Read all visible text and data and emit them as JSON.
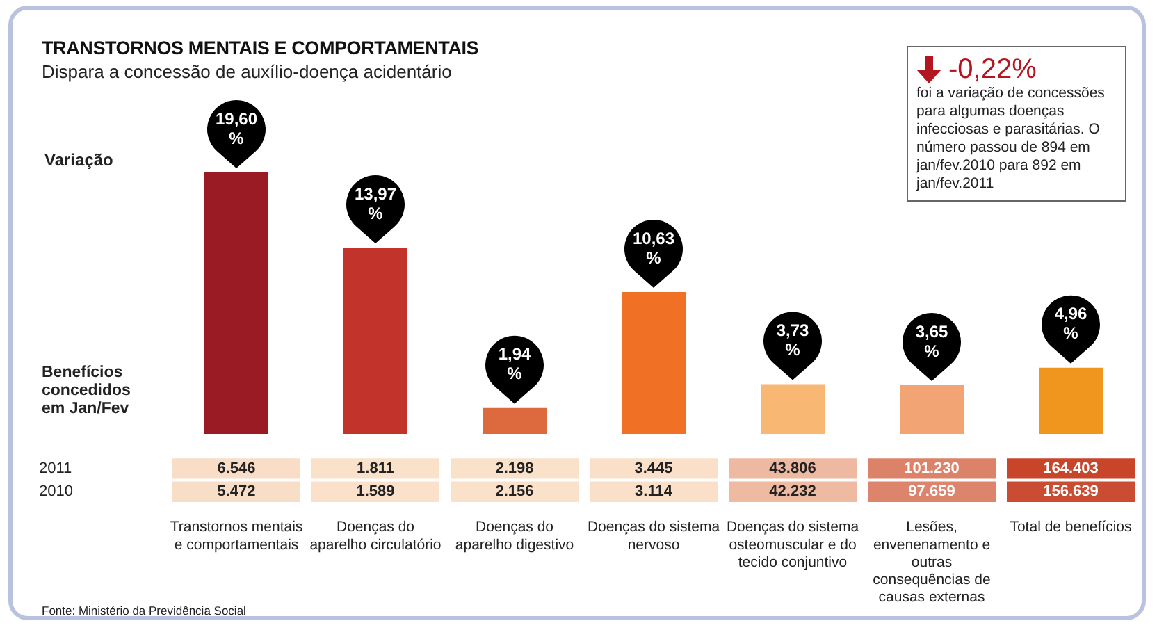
{
  "chart_data": [
    {
      "type": "bar",
      "title": "TRANSTORNOS MENTAIS E COMPORTAMENTAIS",
      "subtitle": "Dispara a concessão de auxílio-doença acidentário",
      "ylabel": "Variação",
      "categories": [
        null,
        null,
        null,
        null,
        null,
        null,
        null
      ],
      "values": [
        19.6,
        13.97,
        1.94,
        10.63,
        3.73,
        3.65,
        4.96
      ],
      "value_labels": [
        "19,60 %",
        "13,97 %",
        "1,94 %",
        "10,63 %",
        "3,73 %",
        "3,65 %",
        "4,96 %"
      ],
      "colors": [
        "#9b1b24",
        "#c1332b",
        "#dd6a3e",
        "#f07125",
        "#f9b774",
        "#f3a475",
        "#f0961e"
      ],
      "tick_labels": false,
      "annotations": [
        "-0,22%",
        "foi a variação de concessões para algumas doenças infecciosas e parasitárias. O número passou de 894 em jan/fev.2010  para 892 em jan/fev.2011"
      ]
    },
    {
      "type": "heatmap",
      "title": "Benefícios concedidos em Jan/Fev",
      "categories": [
        "Transtornos mentais e comportamentais",
        "Doenças do aparelho circulatório",
        "Doenças do aparelho digestivo",
        "Doenças do sistema nervoso",
        "Doenças do sistema osteomuscular e do tecido conjuntivo",
        "Lesões, envenenamento e outras consequências de causas externas",
        "Total de benefícios"
      ],
      "y_categories": [
        "2011",
        "2010"
      ],
      "cells": [
        [
          6546,
          1811,
          2198,
          3445,
          43806,
          101230,
          164403
        ],
        [
          5472,
          1589,
          2156,
          3114,
          42232,
          97659,
          156639
        ]
      ],
      "cell_labels": [
        [
          "6.546",
          "1.811",
          "2.198",
          "3.445",
          "43.806",
          "101.230",
          "164.403"
        ],
        [
          "5.472",
          "1.589",
          "2.156",
          "3.114",
          "42.232",
          "97.659",
          "156.639"
        ]
      ],
      "annotations": [
        "Fonte: Ministério da Previdência Social"
      ]
    }
  ]
}
